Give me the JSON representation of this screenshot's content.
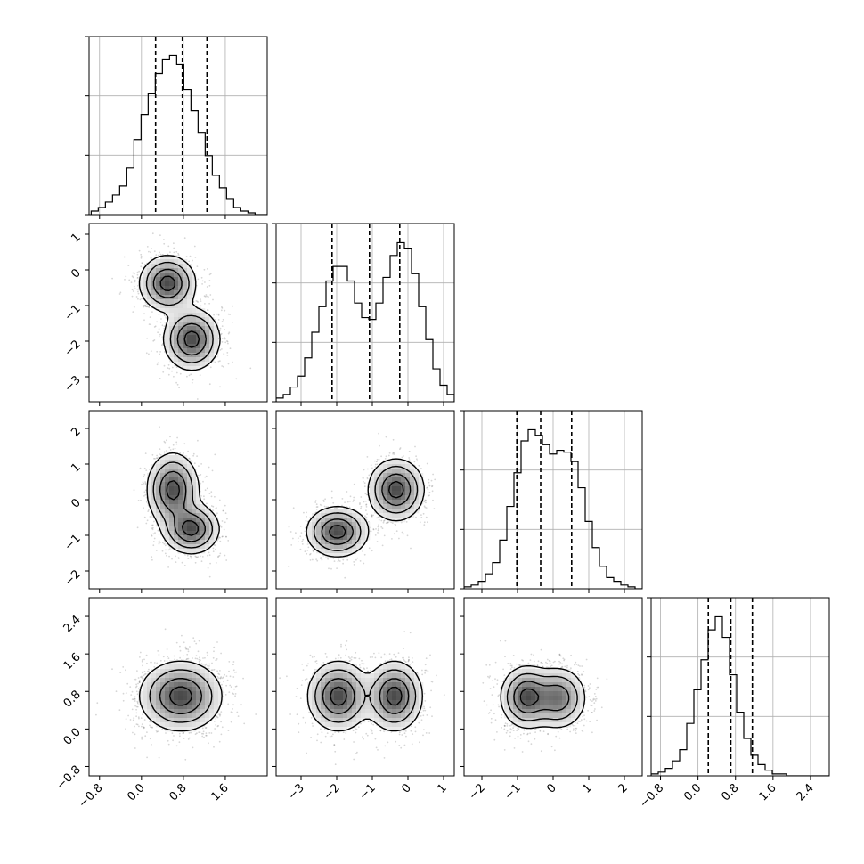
{
  "chart_data": {
    "type": "corner",
    "dimensions": [
      {
        "range": [
          -1.0,
          2.4
        ],
        "ticks": [
          -0.8,
          0.0,
          0.8,
          1.6
        ],
        "tick_labels": [
          "−0.8",
          "0.0",
          "0.8",
          "1.6"
        ]
      },
      {
        "range": [
          -3.7,
          1.3
        ],
        "ticks": [
          -3,
          -2,
          -1,
          0,
          1
        ],
        "tick_labels": [
          "−3",
          "−2",
          "−1",
          "0",
          "1"
        ]
      },
      {
        "range": [
          -2.5,
          2.5
        ],
        "ticks": [
          -2,
          -1,
          0,
          1,
          2
        ],
        "tick_labels": [
          "−2",
          "−1",
          "0",
          "1",
          "2"
        ]
      },
      {
        "range": [
          -1.0,
          2.8
        ],
        "ticks": [
          -0.8,
          0.0,
          0.8,
          1.6,
          2.4
        ],
        "tick_labels": [
          "−0.8",
          "0.0",
          "0.8",
          "1.6",
          "2.4"
        ]
      }
    ],
    "quantiles": [
      [
        0.27,
        0.78,
        1.25
      ],
      [
        -2.13,
        -1.08,
        -0.23
      ],
      [
        -1.02,
        -0.35,
        0.52
      ],
      [
        0.22,
        0.7,
        1.16
      ]
    ],
    "histograms": [
      {
        "edges_start": -0.96,
        "bin_width": 0.136,
        "counts": [
          2,
          4,
          7,
          11,
          16,
          26,
          42,
          56,
          68,
          79,
          87,
          89,
          84,
          70,
          58,
          46,
          33,
          22,
          15,
          9,
          4,
          2,
          1,
          0,
          0
        ]
      },
      {
        "edges_start": -3.7,
        "bin_width": 0.2,
        "counts": [
          2,
          4,
          8,
          14,
          24,
          38,
          52,
          66,
          74,
          74,
          66,
          54,
          46,
          45,
          54,
          68,
          80,
          87,
          84,
          70,
          52,
          34,
          18,
          9,
          4
        ]
      },
      {
        "edges_start": -2.5,
        "bin_width": 0.2,
        "counts": [
          1,
          2,
          4,
          8,
          14,
          26,
          44,
          62,
          79,
          85,
          82,
          77,
          72,
          74,
          73,
          68,
          54,
          36,
          22,
          12,
          6,
          4,
          2,
          1,
          0
        ]
      },
      {
        "edges_start": -1.0,
        "bin_width": 0.152,
        "counts": [
          1,
          2,
          4,
          8,
          14,
          28,
          46,
          62,
          78,
          85,
          74,
          54,
          34,
          20,
          11,
          6,
          3,
          1,
          1,
          0,
          0,
          0,
          0,
          0,
          0
        ]
      }
    ],
    "pair_modes": [
      {
        "row": 1,
        "col": 0,
        "modes": [
          {
            "cx": 0.5,
            "cy": -0.38,
            "sx": 0.26,
            "sy": 0.38,
            "w": 0.5
          },
          {
            "cx": 0.96,
            "cy": -1.95,
            "sx": 0.26,
            "sy": 0.42,
            "w": 0.5
          }
        ]
      },
      {
        "row": 2,
        "col": 0,
        "modes": [
          {
            "cx": 0.6,
            "cy": 0.28,
            "sx": 0.24,
            "sy": 0.5,
            "w": 0.5
          },
          {
            "cx": 0.95,
            "cy": -0.82,
            "sx": 0.26,
            "sy": 0.34,
            "w": 0.5
          }
        ]
      },
      {
        "row": 2,
        "col": 1,
        "modes": [
          {
            "cx": -0.33,
            "cy": 0.28,
            "sx": 0.38,
            "sy": 0.42,
            "w": 0.5
          },
          {
            "cx": -1.98,
            "cy": -0.9,
            "sx": 0.42,
            "sy": 0.34,
            "w": 0.5
          }
        ]
      },
      {
        "row": 3,
        "col": 0,
        "modes": [
          {
            "cx": 0.75,
            "cy": 0.7,
            "sx": 0.38,
            "sy": 0.36,
            "w": 1.0
          }
        ]
      },
      {
        "row": 3,
        "col": 1,
        "modes": [
          {
            "cx": -1.95,
            "cy": 0.7,
            "sx": 0.42,
            "sy": 0.36,
            "w": 0.5
          },
          {
            "cx": -0.38,
            "cy": 0.7,
            "sx": 0.38,
            "sy": 0.36,
            "w": 0.5
          }
        ]
      },
      {
        "row": 3,
        "col": 2,
        "modes": [
          {
            "cx": -0.75,
            "cy": 0.68,
            "sx": 0.35,
            "sy": 0.32,
            "w": 0.55
          },
          {
            "cx": 0.15,
            "cy": 0.66,
            "sx": 0.38,
            "sy": 0.32,
            "w": 0.45
          }
        ]
      }
    ],
    "contour_levels": [
      0.12,
      0.3,
      0.58,
      0.86
    ],
    "grid": true,
    "title": "",
    "legend": "none"
  }
}
